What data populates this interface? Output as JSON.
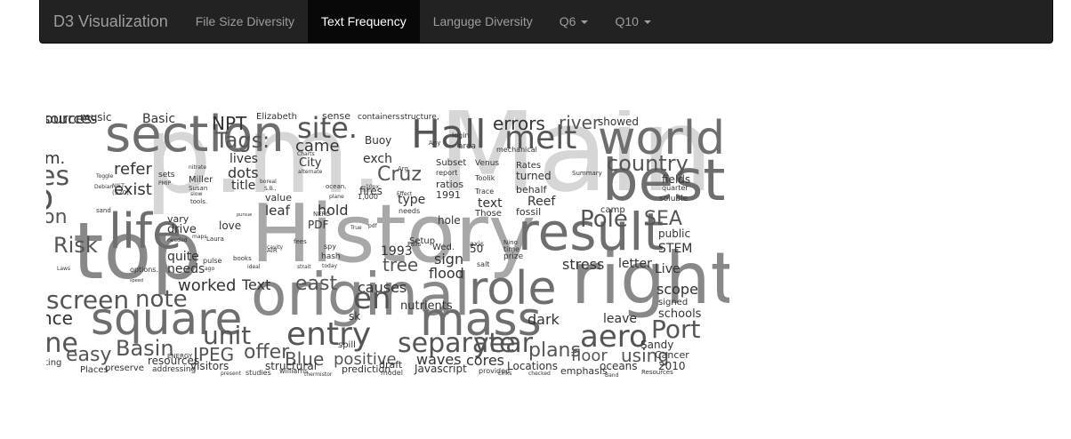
{
  "navbar": {
    "brand": "D3 Visualization",
    "items": [
      {
        "label": "File Size Diversity"
      },
      {
        "label": "Text Frequency"
      },
      {
        "label": "Languge Diversity"
      },
      {
        "label": "Q6"
      },
      {
        "label": "Q10"
      }
    ]
  },
  "colors": {
    "navbar_bg": "#222222",
    "active_bg": "#080808",
    "word_colors": [
      "#d6d6d6",
      "#a8a8a8",
      "#888888",
      "#6e6e6e",
      "#555555",
      "#333333"
    ]
  },
  "cloud": {
    "words": [
      "p.m.",
      "Main",
      "History",
      "top",
      "original",
      "right",
      "section",
      "Hall",
      "world",
      "best",
      "result",
      "square",
      "mass",
      "role",
      "life",
      "melt",
      "site.",
      "country",
      "entry",
      "separate",
      "year",
      "aero",
      "Port",
      "screen",
      "note",
      "Risk",
      "Tags:",
      "Pole",
      "SEA",
      "errors",
      "river",
      "came",
      "Cruz",
      "unit",
      "Basin",
      "offer",
      "Blue",
      "positive",
      "JPEG",
      "plans",
      "floor",
      "using",
      "easy",
      "cores",
      "waves",
      "east",
      "causes",
      "en",
      "tree",
      "flood",
      "sign",
      "stress",
      "letter",
      "Live",
      "scope",
      "schools",
      "signed",
      "hold",
      "type",
      "text",
      "Reef",
      "PDF",
      "resources",
      "visitors",
      "structural",
      "Javascript",
      "Locations",
      "oceans",
      "emphasis",
      "prediction",
      "worked",
      "Text",
      "dark",
      "leave",
      "dots",
      "exist",
      "refer",
      "lives",
      "City",
      "exch",
      "Buoy",
      "needs",
      "quite",
      "drive",
      "vary",
      "love",
      "title",
      "value",
      "leaf",
      "fires",
      "1993",
      "Rates",
      "turned",
      "behalf",
      "fossil",
      "hole",
      "1991",
      "ratios",
      "sources",
      "music",
      "Basic",
      "NPT",
      "Elizabeth",
      "sense",
      "containers",
      "structure,",
      "showed",
      "mechanical",
      "Venus",
      "Toolik",
      "Trace",
      "Those",
      "Subset",
      "report",
      "Summary",
      "camp",
      "public",
      "STEM",
      "soluble",
      "fields",
      "quarter",
      "Sandy",
      "Cancer",
      "2010",
      "Resources",
      "Places",
      "preserve",
      "addressing",
      "present",
      "studies",
      "williams",
      "thermistor",
      "provided",
      "Links",
      "checked",
      "Band",
      "model",
      "draft",
      "nutrients",
      "sk",
      "spill",
      "50",
      "salt",
      "Wed.",
      "Setup",
      "Falls",
      "axis",
      "time",
      "prize",
      "Nino",
      "NERC",
      "1,000",
      "10px;",
      "Effect",
      "Arg",
      "Any",
      "login",
      "area",
      "sets",
      "Miller",
      "PMIP",
      "nitrate",
      "Susan",
      "slow",
      "tools.",
      "ocean.",
      "plane",
      "S.B.,",
      "boreal",
      "alternate",
      "Charts",
      "options.",
      "speed",
      "pulse",
      "ago",
      "books",
      "ideal",
      "strait",
      "today",
      "hash",
      "spy",
      "fees",
      "cavity",
      "AIR",
      "Laura",
      "maps",
      "needed",
      "sand",
      "pursue",
      "True",
      "pdf",
      "needs",
      "ENERGY",
      "NIST",
      "(520)",
      "Toggle",
      "Debian",
      "Laws",
      "ting",
      "one",
      "nce",
      "ion",
      "D",
      "es",
      "m.",
      "ources"
    ]
  }
}
